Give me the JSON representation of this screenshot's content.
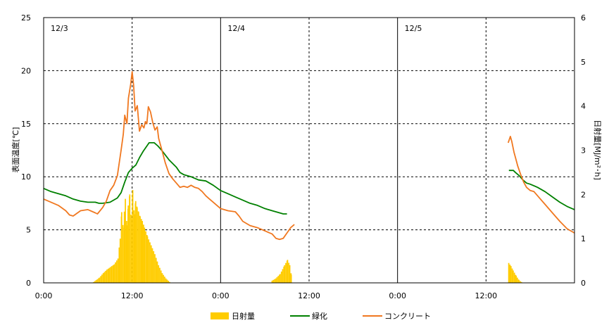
{
  "chart_data": {
    "type": "line",
    "title": "",
    "ylabel_left": "表面温度[℃]",
    "ylabel_right": "日射量[MJ/m²･h]",
    "xlim": [
      0,
      72
    ],
    "ylim_left": [
      0,
      25
    ],
    "ylim_right": [
      0,
      6
    ],
    "yticks_left": [
      "0",
      "5",
      "10",
      "15",
      "20",
      "25"
    ],
    "yticks_right": [
      "0",
      "1",
      "2",
      "3",
      "4",
      "5",
      "6"
    ],
    "xticks": [
      {
        "x": 0,
        "label": "0:00"
      },
      {
        "x": 12,
        "label": "12:00"
      },
      {
        "x": 24,
        "label": "0:00"
      },
      {
        "x": 36,
        "label": "12:00"
      },
      {
        "x": 48,
        "label": "0:00"
      },
      {
        "x": 60,
        "label": "12:00"
      }
    ],
    "day_labels": [
      {
        "x": 0,
        "label": "12/3"
      },
      {
        "x": 24,
        "label": "12/4"
      },
      {
        "x": 48,
        "label": "12/5"
      }
    ],
    "grid": true,
    "legend_position": "bottom",
    "legend": [
      {
        "label": "日射量",
        "type": "bar",
        "color": "#FFCC00"
      },
      {
        "label": "緑化",
        "type": "line",
        "color": "#008000"
      },
      {
        "label": "コンクリート",
        "type": "line",
        "color": "#F07820"
      }
    ],
    "series": [
      {
        "name": "緑化",
        "axis": "left",
        "kind": "line",
        "color": "#008000",
        "segments": [
          [
            [
              0,
              8.9
            ],
            [
              1,
              8.6
            ],
            [
              2,
              8.4
            ],
            [
              3,
              8.2
            ],
            [
              4,
              7.9
            ],
            [
              5,
              7.7
            ],
            [
              6,
              7.6
            ],
            [
              7,
              7.6
            ],
            [
              7.5,
              7.5
            ],
            [
              8,
              7.5
            ],
            [
              9,
              7.6
            ],
            [
              10,
              8.0
            ],
            [
              10.5,
              8.5
            ],
            [
              11,
              9.5
            ],
            [
              11.5,
              10.4
            ],
            [
              12,
              10.8
            ],
            [
              12.5,
              11.1
            ],
            [
              13,
              11.8
            ],
            [
              13.5,
              12.4
            ],
            [
              14,
              12.9
            ],
            [
              14.3,
              13.2
            ],
            [
              15,
              13.2
            ],
            [
              15.5,
              12.9
            ],
            [
              16,
              12.5
            ],
            [
              17,
              11.6
            ],
            [
              18,
              10.9
            ],
            [
              18.5,
              10.4
            ],
            [
              19,
              10.2
            ],
            [
              20,
              10.0
            ],
            [
              21,
              9.7
            ],
            [
              22,
              9.6
            ],
            [
              23,
              9.2
            ],
            [
              24,
              8.7
            ],
            [
              25,
              8.4
            ],
            [
              26,
              8.1
            ],
            [
              27,
              7.8
            ],
            [
              28,
              7.5
            ],
            [
              29,
              7.3
            ],
            [
              30,
              7.0
            ],
            [
              31,
              6.8
            ],
            [
              32,
              6.6
            ],
            [
              32.5,
              6.5
            ],
            [
              33,
              6.5
            ]
          ],
          [
            [
              63.1,
              10.6
            ],
            [
              63.7,
              10.6
            ],
            [
              64,
              10.4
            ],
            [
              64.5,
              10.1
            ],
            [
              65,
              9.7
            ],
            [
              65.5,
              9.4
            ],
            [
              66,
              9.3
            ],
            [
              67,
              9.0
            ],
            [
              68,
              8.6
            ],
            [
              69,
              8.1
            ],
            [
              70,
              7.6
            ],
            [
              71,
              7.2
            ],
            [
              72,
              6.9
            ]
          ]
        ]
      },
      {
        "name": "コンクリート",
        "axis": "left",
        "kind": "line",
        "color": "#F07820",
        "segments": [
          [
            [
              0,
              7.9
            ],
            [
              1,
              7.6
            ],
            [
              2,
              7.3
            ],
            [
              3,
              6.8
            ],
            [
              3.5,
              6.4
            ],
            [
              4,
              6.3
            ],
            [
              5,
              6.8
            ],
            [
              6,
              6.9
            ],
            [
              7,
              6.6
            ],
            [
              7.3,
              6.5
            ],
            [
              8,
              7.1
            ],
            [
              8.5,
              7.7
            ],
            [
              9,
              8.7
            ],
            [
              9.5,
              9.2
            ],
            [
              10,
              10.1
            ],
            [
              10.5,
              12.5
            ],
            [
              10.8,
              14.0
            ],
            [
              11,
              15.8
            ],
            [
              11.3,
              15.0
            ],
            [
              11.5,
              17.4
            ],
            [
              11.8,
              18.7
            ],
            [
              12,
              19.9
            ],
            [
              12.2,
              18.6
            ],
            [
              12.4,
              16.2
            ],
            [
              12.7,
              16.7
            ],
            [
              13,
              14.3
            ],
            [
              13.3,
              14.9
            ],
            [
              13.6,
              14.6
            ],
            [
              13.8,
              15.2
            ],
            [
              14,
              15.0
            ],
            [
              14.2,
              16.6
            ],
            [
              14.5,
              16.1
            ],
            [
              14.8,
              15.1
            ],
            [
              15.1,
              14.4
            ],
            [
              15.4,
              14.7
            ],
            [
              15.6,
              13.6
            ],
            [
              16,
              12.6
            ],
            [
              16.5,
              11.3
            ],
            [
              17,
              10.3
            ],
            [
              17.5,
              9.8
            ],
            [
              18,
              9.4
            ],
            [
              18.5,
              9.0
            ],
            [
              19,
              9.1
            ],
            [
              19.5,
              9.0
            ],
            [
              20,
              9.2
            ],
            [
              20.5,
              9.0
            ],
            [
              21,
              8.9
            ],
            [
              21.5,
              8.6
            ],
            [
              22,
              8.2
            ],
            [
              22.5,
              7.9
            ],
            [
              23,
              7.6
            ],
            [
              23.5,
              7.3
            ],
            [
              24,
              7.0
            ],
            [
              25,
              6.8
            ],
            [
              26,
              6.7
            ],
            [
              26.5,
              6.3
            ],
            [
              27,
              5.8
            ],
            [
              28,
              5.4
            ],
            [
              29,
              5.2
            ],
            [
              30,
              4.9
            ],
            [
              31,
              4.6
            ],
            [
              31.5,
              4.2
            ],
            [
              32,
              4.1
            ],
            [
              32.5,
              4.2
            ],
            [
              33,
              4.7
            ],
            [
              33.5,
              5.2
            ],
            [
              34,
              5.5
            ]
          ],
          [
            [
              63.0,
              13.2
            ],
            [
              63.3,
              13.8
            ],
            [
              63.5,
              13.3
            ],
            [
              63.8,
              12.3
            ],
            [
              64,
              11.8
            ],
            [
              64.3,
              11.0
            ],
            [
              64.7,
              10.2
            ],
            [
              65.1,
              9.5
            ],
            [
              65.5,
              9.0
            ],
            [
              66,
              8.7
            ],
            [
              66.5,
              8.6
            ],
            [
              67,
              8.2
            ],
            [
              68,
              7.4
            ],
            [
              69,
              6.6
            ],
            [
              70,
              5.8
            ],
            [
              71,
              5.1
            ],
            [
              72,
              4.7
            ]
          ]
        ]
      },
      {
        "name": "日射量",
        "axis": "right",
        "kind": "bar",
        "color": "#FFCC00",
        "step_hours": 0.1667,
        "points": [
          [
            6.7,
            0.02
          ],
          [
            7.5,
            0.12
          ],
          [
            8,
            0.22
          ],
          [
            8.5,
            0.3
          ],
          [
            9,
            0.36
          ],
          [
            9.5,
            0.42
          ],
          [
            10,
            0.55
          ],
          [
            10.3,
            1.0
          ],
          [
            10.5,
            1.6
          ],
          [
            10.7,
            1.25
          ],
          [
            11,
            1.9
          ],
          [
            11.2,
            1.3
          ],
          [
            11.4,
            1.75
          ],
          [
            11.6,
            2.0
          ],
          [
            11.8,
            1.45
          ],
          [
            12,
            2.1
          ],
          [
            12.2,
            1.55
          ],
          [
            12.4,
            1.85
          ],
          [
            12.6,
            1.7
          ],
          [
            12.8,
            1.6
          ],
          [
            13,
            1.5
          ],
          [
            13.3,
            1.4
          ],
          [
            13.6,
            1.25
          ],
          [
            14,
            1.05
          ],
          [
            14.5,
            0.85
          ],
          [
            15,
            0.65
          ],
          [
            15.5,
            0.4
          ],
          [
            16,
            0.22
          ],
          [
            16.5,
            0.1
          ],
          [
            17,
            0.02
          ],
          [
            30.9,
            0.05
          ],
          [
            31.4,
            0.1
          ],
          [
            32,
            0.2
          ],
          [
            32.6,
            0.4
          ],
          [
            33,
            0.52
          ],
          [
            33.3,
            0.4
          ],
          [
            33.5,
            0.18
          ],
          [
            63.0,
            0.45
          ],
          [
            63.3,
            0.38
          ],
          [
            63.6,
            0.28
          ],
          [
            64,
            0.16
          ],
          [
            64.4,
            0.06
          ],
          [
            64.7,
            0.02
          ]
        ]
      }
    ]
  }
}
